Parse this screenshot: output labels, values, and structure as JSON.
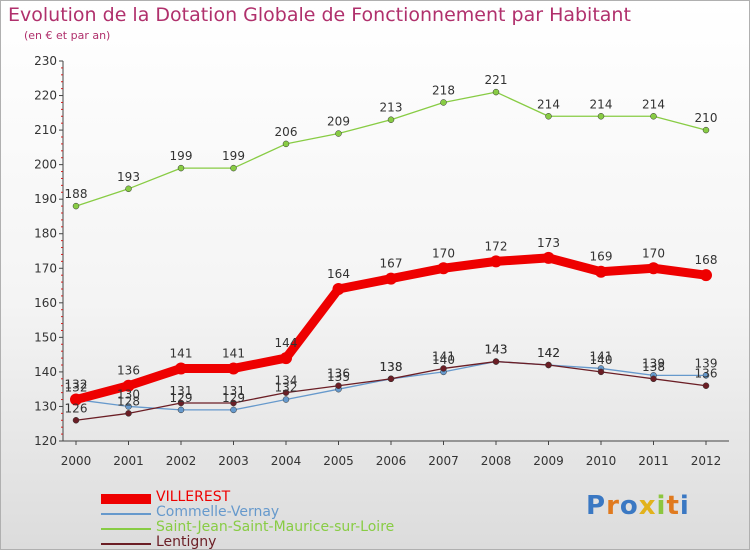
{
  "title": "Evolution de la Dotation Globale de Fonctionnement par Habitant",
  "subtitle": "(en € et par an)",
  "logo_text": "Proxiti",
  "chart_data": {
    "type": "line",
    "title": "Evolution de la Dotation Globale de Fonctionnement par Habitant",
    "ylabel": "(en € et par an)",
    "xlabel": "",
    "x": [
      "2000",
      "2001",
      "2002",
      "2003",
      "2004",
      "2005",
      "2006",
      "2007",
      "2008",
      "2009",
      "2010",
      "2011",
      "2012"
    ],
    "ylim": [
      120,
      230
    ],
    "yticks": [
      120,
      130,
      140,
      150,
      160,
      170,
      180,
      190,
      200,
      210,
      220,
      230
    ],
    "grid": false,
    "legend_position": "bottom-left",
    "series": [
      {
        "name": "VILLEREST",
        "color": "#ee0000",
        "values": [
          132,
          136,
          141,
          141,
          144,
          164,
          167,
          170,
          172,
          173,
          169,
          170,
          168
        ]
      },
      {
        "name": "Commelle-Vernay",
        "color": "#6699cc",
        "values": [
          132,
          130,
          129,
          129,
          132,
          135,
          138,
          140,
          143,
          142,
          141,
          139,
          139
        ]
      },
      {
        "name": "Saint-Jean-Saint-Maurice-sur-Loire",
        "color": "#88cc44",
        "values": [
          188,
          193,
          199,
          199,
          206,
          209,
          213,
          218,
          221,
          214,
          214,
          214,
          210
        ]
      },
      {
        "name": "Lentigny",
        "color": "#6b1e25",
        "values": [
          126,
          128,
          131,
          131,
          134,
          136,
          138,
          141,
          143,
          142,
          140,
          138,
          136
        ]
      }
    ]
  }
}
